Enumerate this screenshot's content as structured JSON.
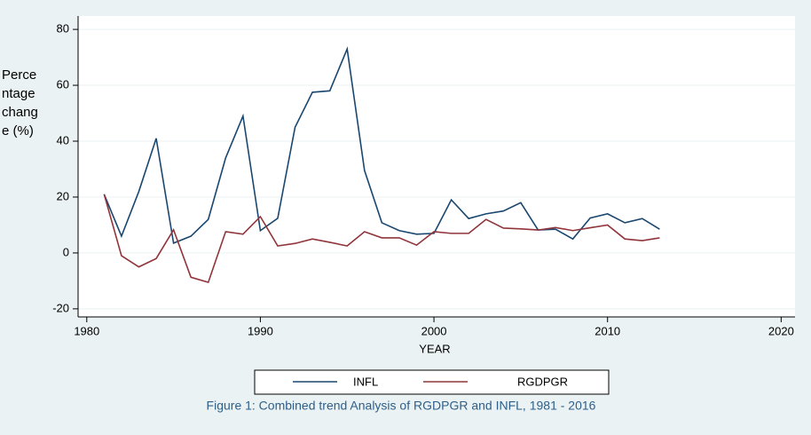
{
  "chart_data": {
    "type": "line",
    "caption": "Figure 1: Combined trend Analysis of RGDPGR and INFL, 1981 - 2016",
    "xlabel": "YEAR",
    "ylabel": "Percentage change (%)",
    "x": [
      1981,
      1982,
      1983,
      1984,
      1985,
      1986,
      1987,
      1988,
      1989,
      1990,
      1991,
      1992,
      1993,
      1994,
      1995,
      1996,
      1997,
      1998,
      1999,
      2000,
      2001,
      2002,
      2003,
      2004,
      2005,
      2006,
      2007,
      2008,
      2009,
      2010,
      2011,
      2012,
      2013
    ],
    "series": [
      {
        "name": "INFL",
        "color": "#1a476f",
        "values": [
          21,
          6,
          22,
          41,
          3.5,
          6,
          12,
          34,
          49,
          8,
          12.4,
          45,
          57.5,
          58,
          73,
          29.5,
          10.8,
          8,
          6.7,
          7,
          19,
          12.3,
          14,
          15,
          18,
          8.2,
          8.5,
          5,
          12.5,
          14,
          10.8,
          12.3,
          8.5
        ]
      },
      {
        "name": "RGDPGR",
        "color": "#90353b",
        "values": [
          21,
          -1,
          -5,
          -2,
          8.3,
          -8.7,
          -10.5,
          7.6,
          6.7,
          13,
          2.5,
          3.4,
          5,
          3.8,
          2.5,
          7.6,
          5.4,
          5.4,
          2.8,
          7.6,
          7,
          7,
          12,
          8.9,
          8.6,
          8.2,
          9.1,
          8,
          9,
          10,
          5,
          4.4,
          5.4
        ]
      }
    ],
    "xlim": [
      1979.5,
      2020.8
    ],
    "xticks": [
      1980,
      1990,
      2000,
      2010,
      2020
    ],
    "ylim": [
      -22.9,
      84.8
    ],
    "yticks": [
      -20,
      0,
      20,
      40,
      60,
      80
    ],
    "grid": true,
    "legend": "bottom"
  }
}
